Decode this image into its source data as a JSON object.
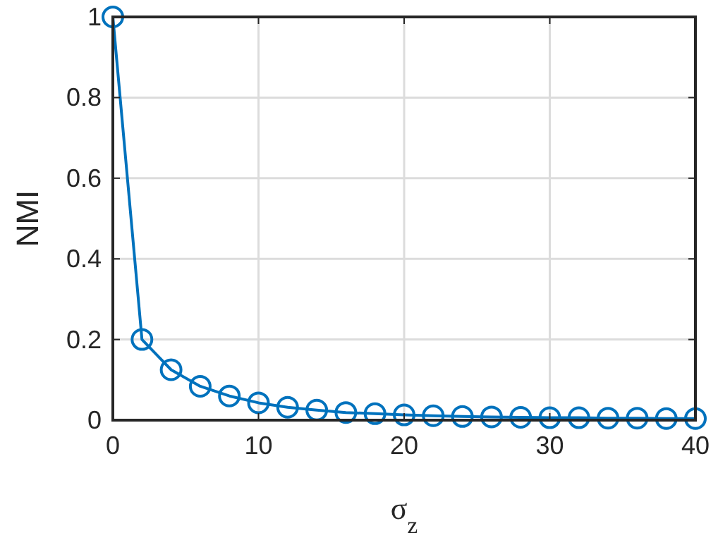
{
  "chart_data": {
    "type": "line",
    "xlabel": "σ$_{z}$",
    "ylabel": "NMI",
    "x": [
      0,
      2,
      4,
      6,
      8,
      10,
      12,
      14,
      16,
      18,
      20,
      22,
      24,
      26,
      28,
      30,
      32,
      34,
      36,
      38,
      40
    ],
    "series": [
      {
        "color": "#0072bd",
        "values": [
          1,
          0.2,
          0.125,
          0.084,
          0.06,
          0.043,
          0.032,
          0.025,
          0.019,
          0.016,
          0.013,
          0.011,
          0.009,
          0.008,
          0.007,
          0.006,
          0.006,
          0.005,
          0.005,
          0.004,
          0.004
        ]
      }
    ],
    "xlim": [
      0,
      40
    ],
    "xticks": [
      0,
      10,
      20,
      30,
      40
    ],
    "ylim": [
      0,
      1
    ],
    "yticks": [
      0,
      0.2,
      0.4,
      0.6,
      0.8,
      1
    ],
    "grid": true,
    "marker": "circle",
    "line_style": "solid"
  }
}
